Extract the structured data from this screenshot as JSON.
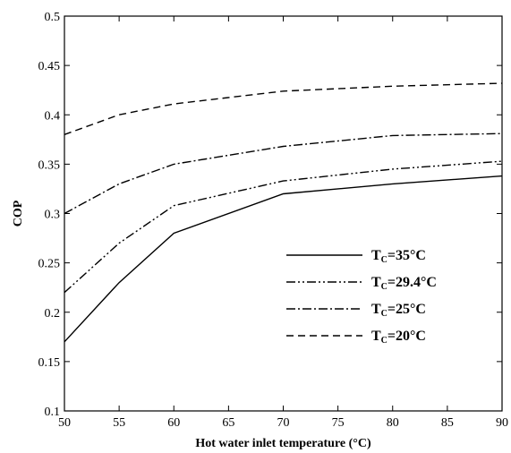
{
  "chart_data": {
    "type": "line",
    "title": "",
    "xlabel": "Hot water inlet temperature (°C)",
    "ylabel": "COP",
    "xlim": [
      50,
      90
    ],
    "ylim": [
      0.1,
      0.5
    ],
    "xticks": [
      50,
      55,
      60,
      65,
      70,
      75,
      80,
      85,
      90
    ],
    "yticks": [
      0.1,
      0.15,
      0.2,
      0.25,
      0.3,
      0.35,
      0.4,
      0.45,
      0.5
    ],
    "grid": false,
    "legend_position": "lower-right",
    "series": [
      {
        "name": "TC=35°C",
        "legend": {
          "prefix": "T",
          "sub": "C",
          "suffix": "=35°C"
        },
        "line_style": "solid",
        "x": [
          50,
          55,
          60,
          70,
          80,
          90
        ],
        "y": [
          0.17,
          0.23,
          0.28,
          0.32,
          0.33,
          0.338
        ]
      },
      {
        "name": "TC=29.4°C",
        "legend": {
          "prefix": "T",
          "sub": "C",
          "suffix": "=29.4°C"
        },
        "line_style": "dash-dot-dot",
        "x": [
          50,
          55,
          60,
          70,
          80,
          90
        ],
        "y": [
          0.22,
          0.27,
          0.308,
          0.333,
          0.345,
          0.353
        ]
      },
      {
        "name": "TC=25°C",
        "legend": {
          "prefix": "T",
          "sub": "C",
          "suffix": "=25°C"
        },
        "line_style": "dash-dot",
        "x": [
          50,
          55,
          60,
          70,
          80,
          90
        ],
        "y": [
          0.3,
          0.33,
          0.35,
          0.368,
          0.379,
          0.381
        ]
      },
      {
        "name": "TC=20°C",
        "legend": {
          "prefix": "T",
          "sub": "C",
          "suffix": "=20°C"
        },
        "line_style": "dashed",
        "x": [
          50,
          55,
          60,
          70,
          80,
          90
        ],
        "y": [
          0.38,
          0.4,
          0.411,
          0.424,
          0.429,
          0.432
        ]
      }
    ]
  }
}
